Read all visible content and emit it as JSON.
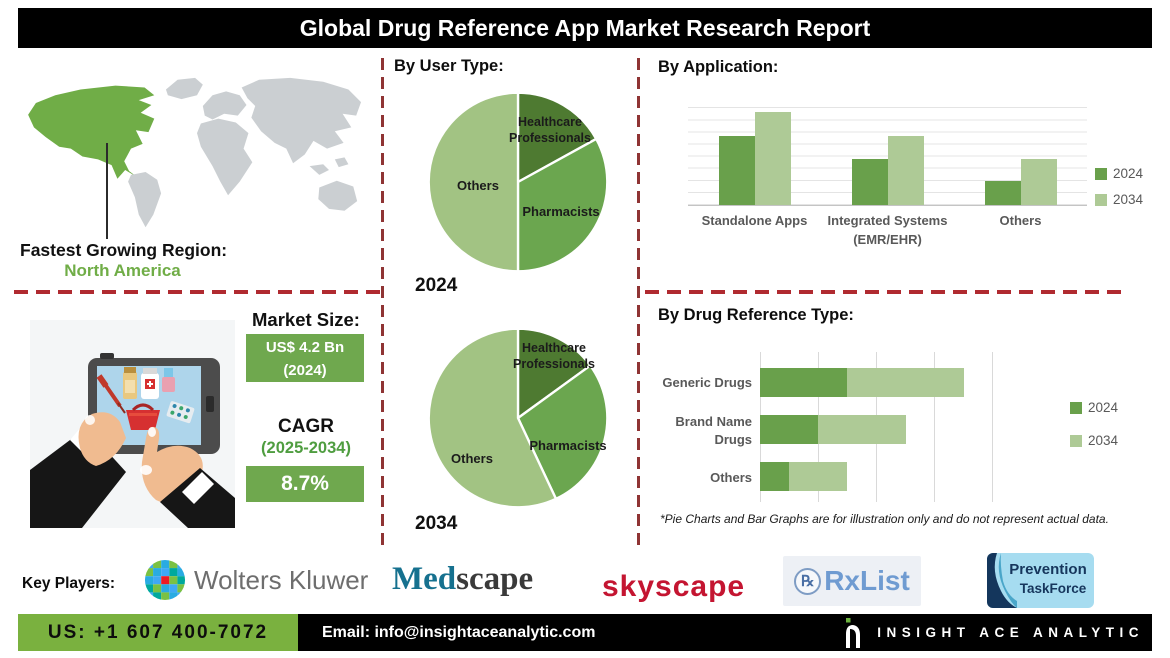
{
  "header": {
    "title": "Global Drug Reference App Market Research Report"
  },
  "left_panel": {
    "region_label": "Fastest Growing Region:",
    "region_value": "North America",
    "market_size_label": "Market Size:",
    "market_size_value": "US$ 4.2 Bn",
    "market_size_year": "(2024)",
    "cagr_label": "CAGR",
    "cagr_period": "(2025-2034)",
    "cagr_value": "8.7%"
  },
  "sections": {
    "user_type_heading": "By User Type:",
    "application_heading": "By  Application:",
    "drug_reference_heading": "By Drug Reference Type:",
    "disclaimer": "*Pie Charts and Bar Graphs are for illustration only and do not represent actual data."
  },
  "chart_data": [
    {
      "type": "pie",
      "title": "By User Type:",
      "year_label": "2024",
      "slices": [
        {
          "label": "Healthcare Professionals",
          "value": 17,
          "color": "#4e7a31"
        },
        {
          "label": "Pharmacists",
          "value": 33,
          "color": "#6ba64f"
        },
        {
          "label": "Others",
          "value": 50,
          "color": "#a2c383"
        }
      ]
    },
    {
      "type": "pie",
      "title": "By User Type:",
      "year_label": "2034",
      "slices": [
        {
          "label": "Healthcare Professionals",
          "value": 15,
          "color": "#4e7a31"
        },
        {
          "label": "Pharmacists",
          "value": 28,
          "color": "#6ba64f"
        },
        {
          "label": "Others",
          "value": 57,
          "color": "#a2c383"
        }
      ]
    },
    {
      "type": "bar",
      "title": "By Application:",
      "categories": [
        "Standalone Apps",
        "Integrated Systems (EMR/EHR)",
        "Others"
      ],
      "series": [
        {
          "name": "2024",
          "color": "#69a04b",
          "values": [
            6.4,
            4.3,
            2.2
          ]
        },
        {
          "name": "2034",
          "color": "#aeca96",
          "values": [
            8.6,
            6.4,
            4.3
          ]
        }
      ],
      "ylim": [
        0,
        10
      ],
      "grid": true,
      "legend": "right"
    },
    {
      "type": "stacked-hbar",
      "title": "By Drug Reference Type:",
      "categories": [
        "Generic Drugs",
        "Brand Name Drugs",
        "Others"
      ],
      "series": [
        {
          "name": "2024",
          "color": "#69a04b",
          "values": [
            1.5,
            1.0,
            0.5
          ]
        },
        {
          "name": "2034",
          "color": "#aeca96",
          "values": [
            2.0,
            1.5,
            1.0
          ]
        }
      ],
      "xlim": [
        0,
        4
      ],
      "grid": true,
      "legend": "right",
      "note": "*Pie Charts and Bar Graphs are for illustration only and do not represent actual data."
    }
  ],
  "key_players": {
    "label": "Key Players:",
    "wolters_kluwer": "Wolters Kluwer",
    "medscape": {
      "part1": "Med",
      "part2": "scape"
    },
    "skyscape": "skyscape",
    "rxlist": {
      "rx": "℞",
      "text": "RxList"
    },
    "prevention": {
      "line1": "Prevention",
      "line2": "TaskForce"
    }
  },
  "footer": {
    "phone": "US: +1 607 400-7072",
    "email": "Email: info@insightaceanalytic.com",
    "brand": "INSIGHT ACE ANALYTIC"
  },
  "colors": {
    "pie_dark_green": "#4e7a31",
    "pie_mid_green": "#6ba64f",
    "pie_light_green": "#a2c383",
    "bar_2024": "#69a04b",
    "bar_2034": "#aeca96",
    "accent_green": "#70ad47",
    "badge_green": "#6fa84e",
    "footer_green": "#7ab13f",
    "dash_red_horizontal": "#b02a30",
    "dash_red_vertical": "#8f3434",
    "header_bg": "#000000"
  }
}
